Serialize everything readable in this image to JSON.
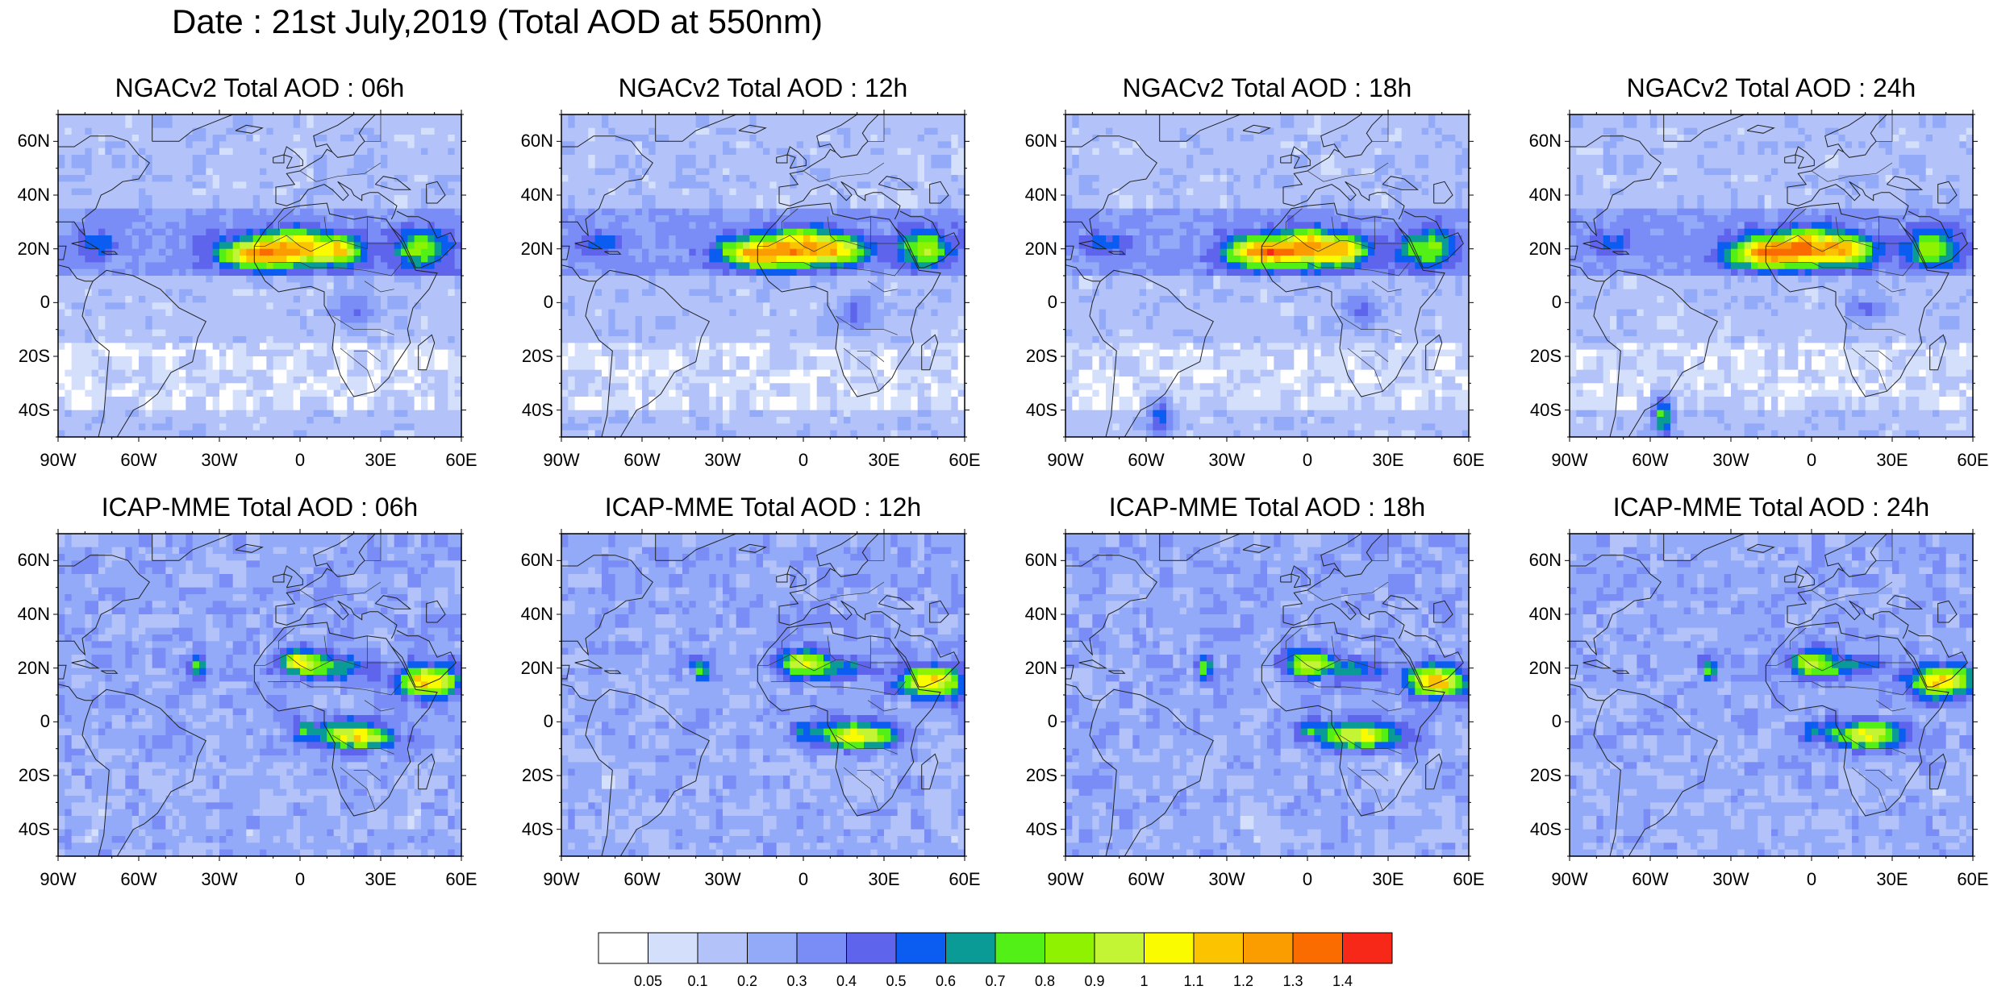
{
  "title": "Date : 21st July,2019 (Total AOD at 550nm)",
  "panels": [
    {
      "title": "NGACv2 Total AOD : 06h",
      "model": "ngac"
    },
    {
      "title": "NGACv2 Total AOD : 12h",
      "model": "ngac"
    },
    {
      "title": "NGACv2 Total AOD : 18h",
      "model": "ngac"
    },
    {
      "title": "NGACv2 Total AOD : 24h",
      "model": "ngac"
    },
    {
      "title": "ICAP-MME Total AOD : 06h",
      "model": "icap"
    },
    {
      "title": "ICAP-MME Total AOD : 12h",
      "model": "icap"
    },
    {
      "title": "ICAP-MME Total AOD : 18h",
      "model": "icap"
    },
    {
      "title": "ICAP-MME Total AOD : 24h",
      "model": "icap"
    }
  ],
  "lat_labels": [
    "60N",
    "40N",
    "20N",
    "0",
    "20S",
    "40S"
  ],
  "lat_values": [
    60,
    40,
    20,
    0,
    -20,
    -40
  ],
  "lon_labels": [
    "90W",
    "60W",
    "30W",
    "0",
    "30E",
    "60E"
  ],
  "lon_values": [
    -90,
    -60,
    -30,
    0,
    30,
    60
  ],
  "extent": {
    "lon_min": -90,
    "lon_max": 60,
    "lat_min": -50,
    "lat_max": 70
  },
  "colorbar": {
    "labels": [
      "0.05",
      "0.1",
      "0.2",
      "0.3",
      "0.4",
      "0.5",
      "0.6",
      "0.7",
      "0.8",
      "0.9",
      "1",
      "1.1",
      "1.2",
      "1.3",
      "1.4"
    ],
    "colors": [
      "#ffffff",
      "#d4dffb",
      "#b3c3fa",
      "#93aaf8",
      "#7a8cf5",
      "#5e65ec",
      "#0a5df0",
      "#0b9b96",
      "#52f016",
      "#8ef200",
      "#c4f535",
      "#fbfb00",
      "#fbc300",
      "#fb9c00",
      "#fb6c00",
      "#f82818"
    ]
  }
}
